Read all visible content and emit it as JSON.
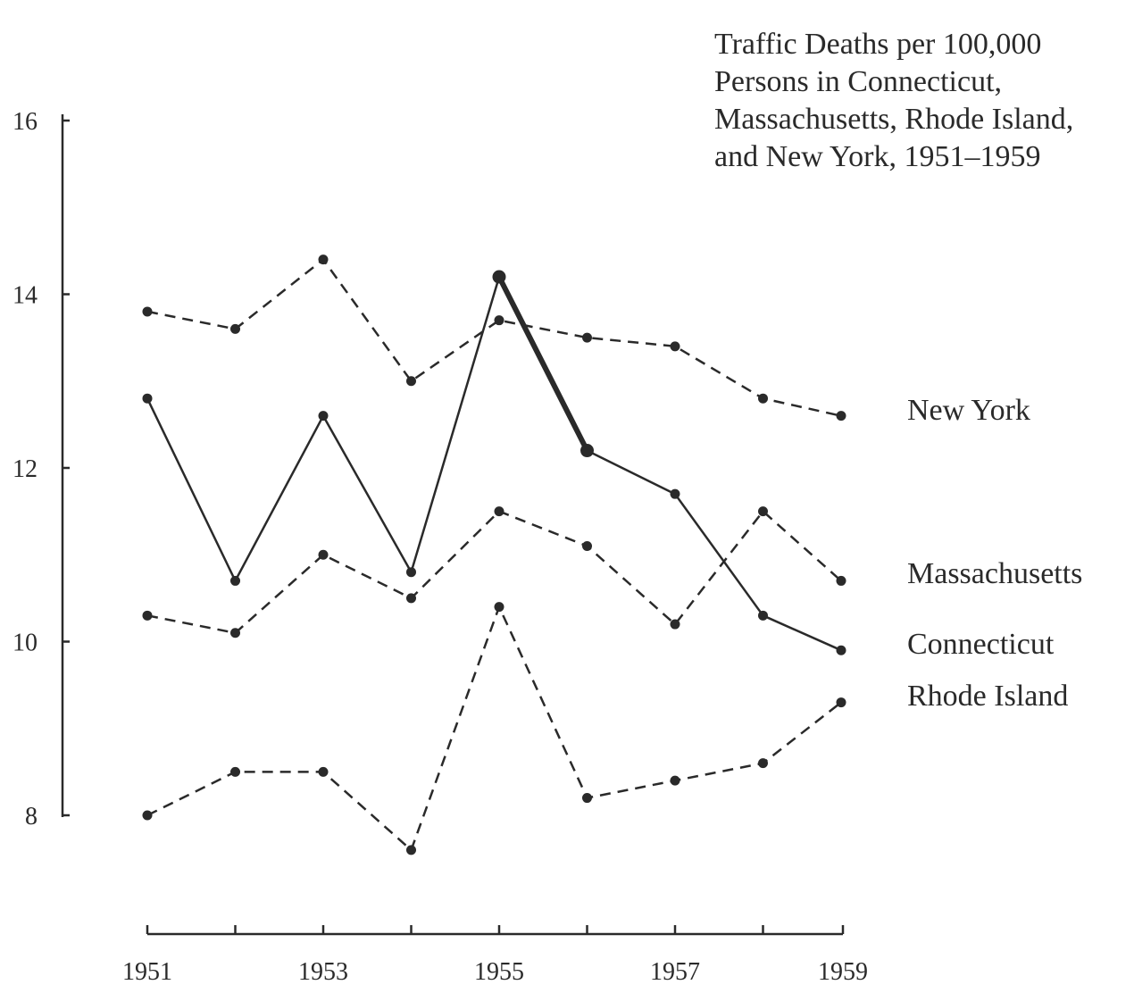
{
  "chart_data": {
    "type": "line",
    "title_lines": [
      "Traffic Deaths per 100,000",
      "Persons in Connecticut,",
      "Massachusetts, Rhode Island,",
      "and New York, 1951–1959"
    ],
    "x": [
      1951,
      1952,
      1953,
      1954,
      1955,
      1956,
      1957,
      1958,
      1959
    ],
    "x_tick_labels": [
      "1951",
      "1953",
      "1955",
      "1957",
      "1959"
    ],
    "y_tick_labels": [
      "8",
      "10",
      "12",
      "14",
      "16"
    ],
    "ylim": [
      8,
      16
    ],
    "grid": false,
    "series": [
      {
        "name": "New York",
        "style": "dashed",
        "values": [
          13.8,
          13.6,
          14.4,
          13.0,
          13.7,
          13.5,
          13.4,
          12.8,
          12.6
        ]
      },
      {
        "name": "Massachusetts",
        "style": "dashed",
        "values": [
          10.3,
          10.1,
          11.0,
          10.5,
          11.5,
          11.1,
          10.2,
          11.5,
          10.7
        ]
      },
      {
        "name": "Connecticut",
        "style": "solid",
        "values": [
          12.8,
          10.7,
          12.6,
          10.8,
          14.2,
          12.2,
          11.7,
          10.3,
          9.9
        ]
      },
      {
        "name": "Rhode Island",
        "style": "dashed",
        "values": [
          8.0,
          8.5,
          8.5,
          7.6,
          10.4,
          8.2,
          8.4,
          8.6,
          9.3
        ]
      }
    ],
    "highlight": {
      "series": "Connecticut",
      "from_x": 1955,
      "to_x": 1956
    }
  }
}
